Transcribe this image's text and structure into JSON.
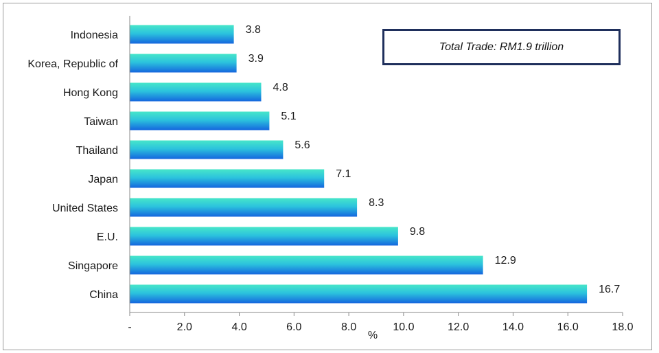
{
  "chart_data": {
    "type": "bar",
    "orientation": "horizontal",
    "categories": [
      "Indonesia",
      "Korea, Republic of",
      "Hong Kong",
      "Taiwan",
      "Thailand",
      "Japan",
      "United States",
      "E.U.",
      "Singapore",
      "China"
    ],
    "values": [
      3.8,
      3.9,
      4.8,
      5.1,
      5.6,
      7.1,
      8.3,
      9.8,
      12.9,
      16.7
    ],
    "value_labels": [
      "3.8",
      "3.9",
      "4.8",
      "5.1",
      "5.6",
      "7.1",
      "8.3",
      "9.8",
      "12.9",
      "16.7"
    ],
    "xlim": [
      0,
      18
    ],
    "x_ticks": [
      "-",
      "2.0",
      "4.0",
      "6.0",
      "8.0",
      "10.0",
      "12.0",
      "14.0",
      "16.0",
      "18.0"
    ],
    "xlabel": "%",
    "annotation": "Total Trade: RM1.9 trillion",
    "grid": false,
    "legend": "none",
    "colors": {
      "bar_top": "#3ee0c8",
      "bar_bottom": "#1a78e0",
      "axis": "#888888",
      "text": "#1a1a1a",
      "note_border": "#1f2f5c"
    }
  }
}
